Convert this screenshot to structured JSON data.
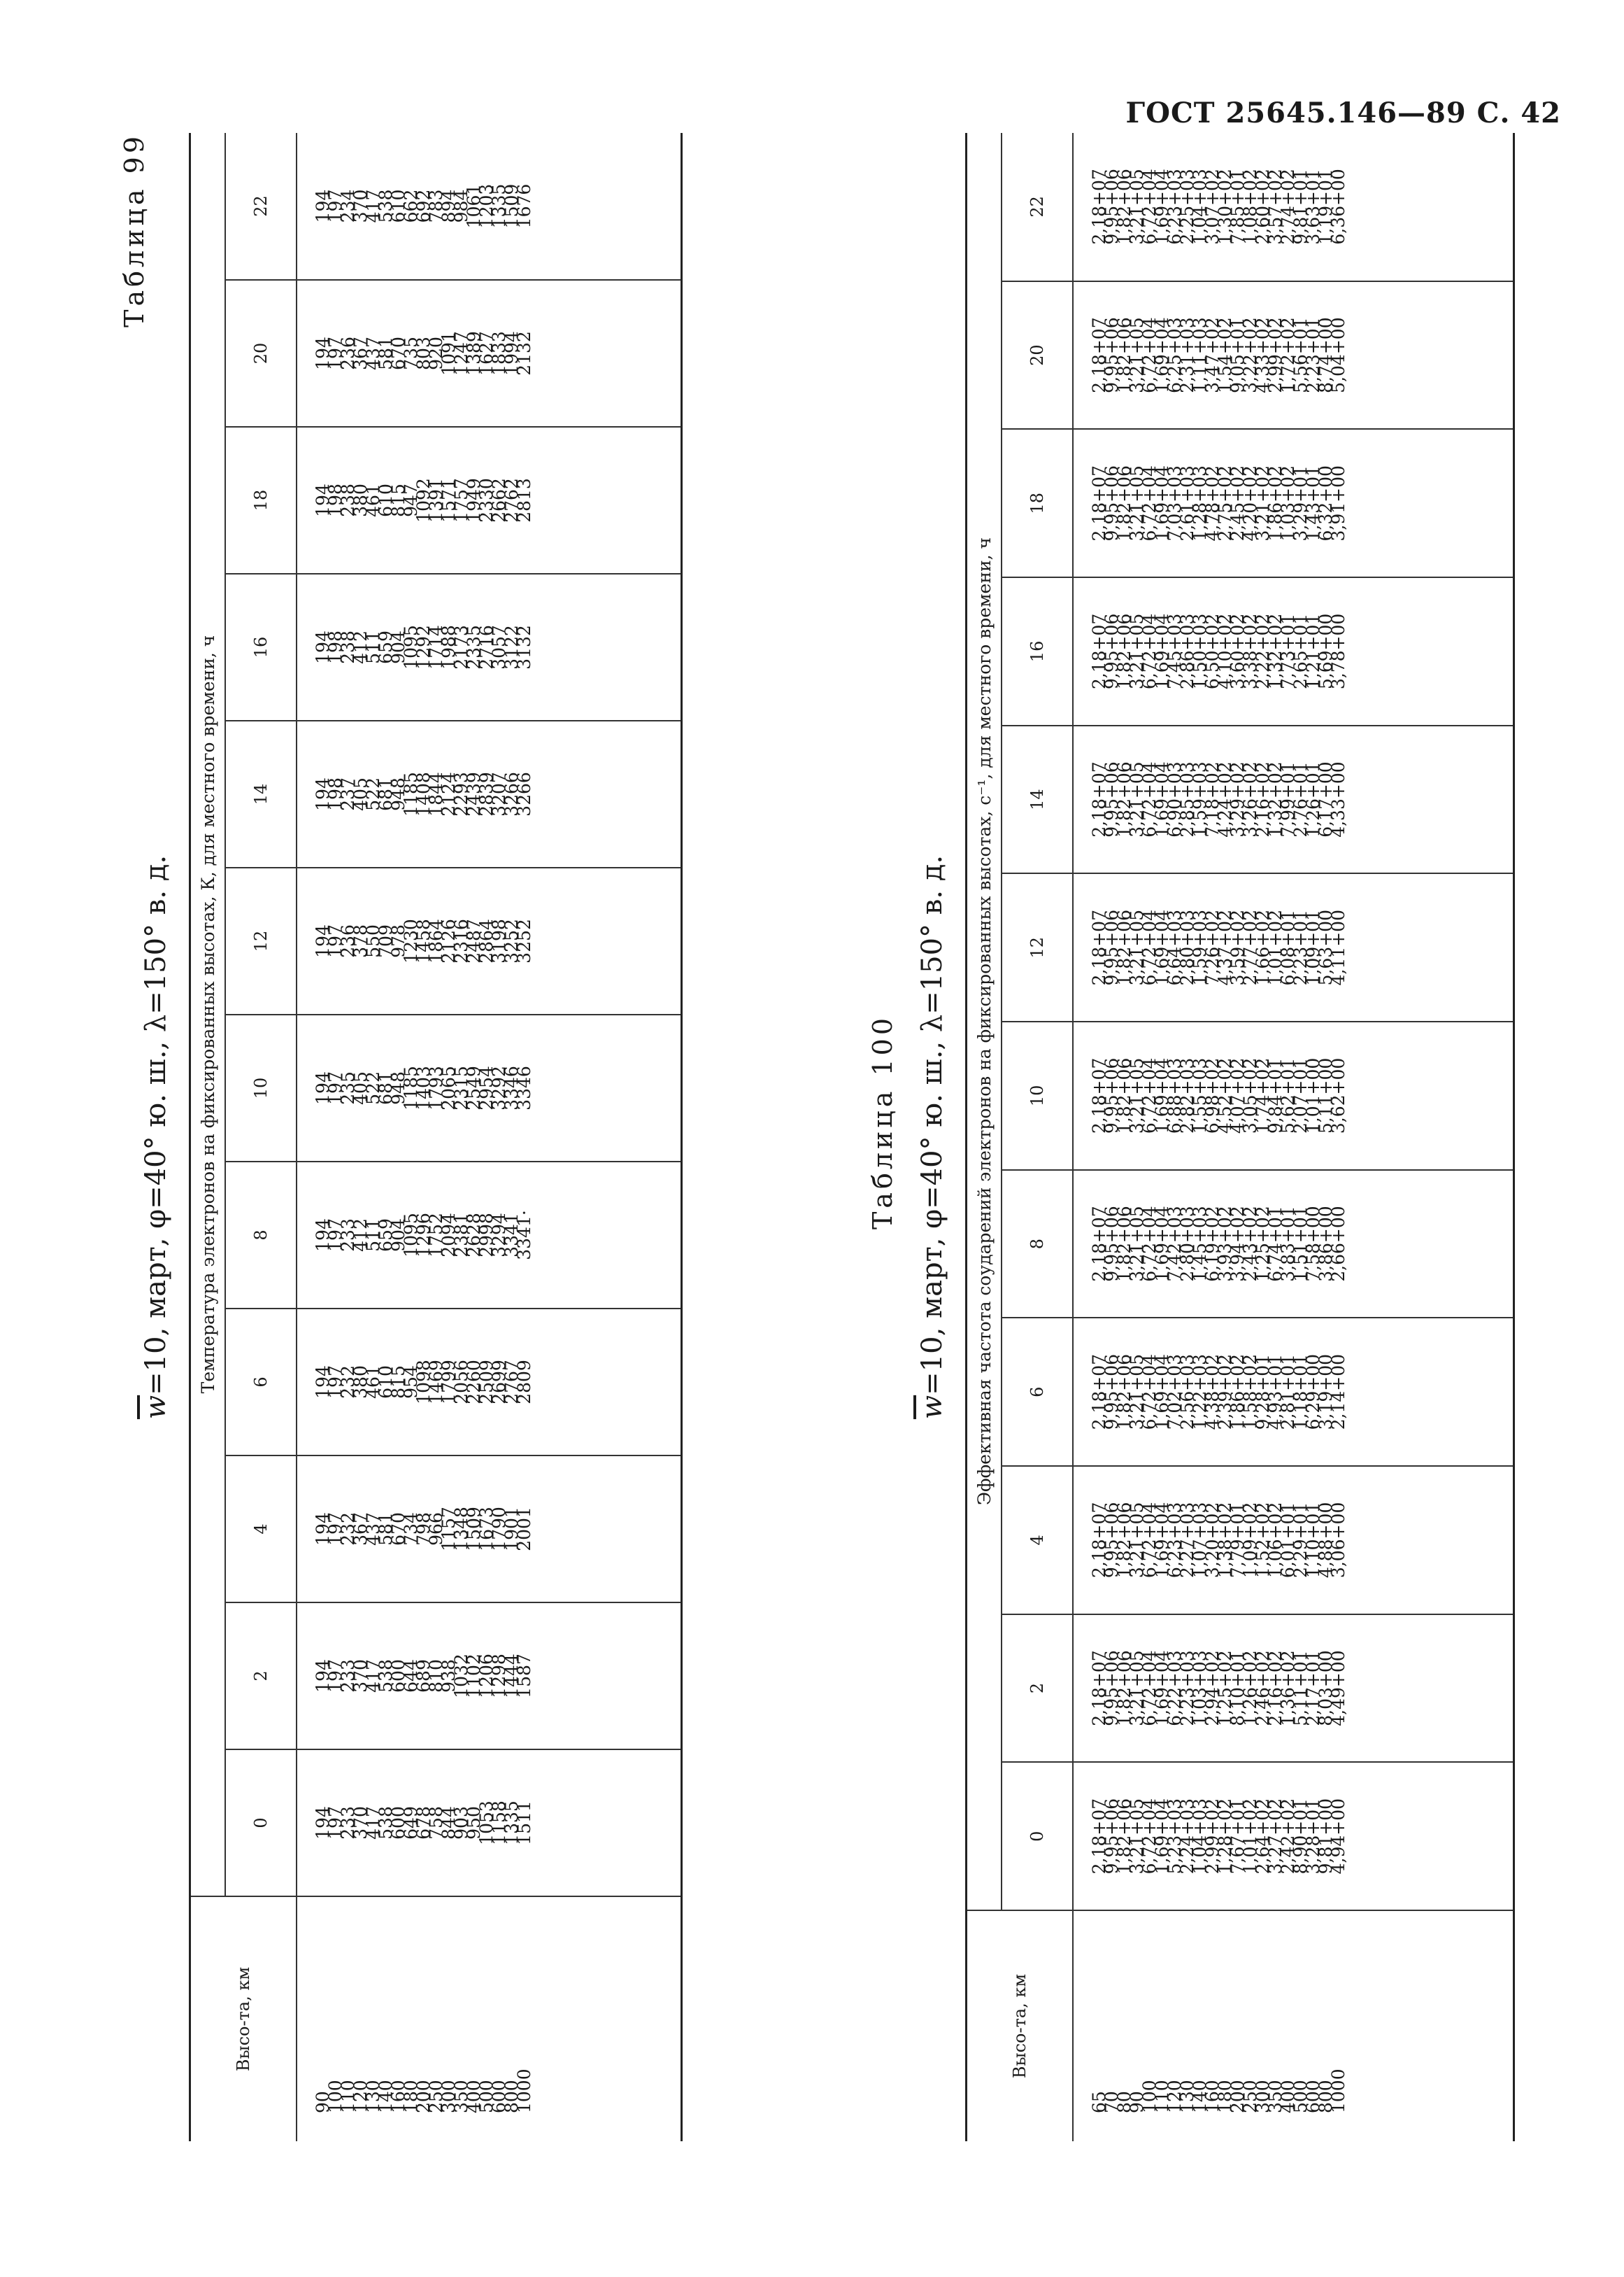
{
  "header": "ГОСТ 25645.146—89 С. 42",
  "tables": [
    {
      "number": "Таблица 99",
      "caption_w": "w",
      "caption_rest": "=10, март, φ=40° ю. ш., λ=150° в. д.",
      "alt_header": "Высо-та, км",
      "span_header": "Температура электронов на фиксированных высотах, К, для местного времени, ч",
      "hours": [
        "0",
        "2",
        "4",
        "6",
        "8",
        "10",
        "12",
        "14",
        "16",
        "18",
        "20",
        "22"
      ],
      "altitudes": [
        "90",
        "100",
        "110",
        "120",
        "130",
        "140",
        "160",
        "180",
        "200",
        "250",
        "300",
        "350",
        "400",
        "500",
        "600",
        "800",
        "1000"
      ],
      "columns": [
        [
          "194",
          "197",
          "233",
          "370",
          "417",
          "538",
          "600",
          "649",
          "678",
          "758",
          "844",
          "903",
          "950",
          "1053",
          "1158",
          "1335",
          "1511"
        ],
        [
          "194",
          "197",
          "233",
          "370",
          "417",
          "538",
          "600",
          "644",
          "689",
          "810",
          "938",
          "1032",
          "1102",
          "1206",
          "1298",
          "1444",
          "1587"
        ],
        [
          "194",
          "197",
          "232",
          "367",
          "437",
          "581",
          "670",
          "734",
          "798",
          "966",
          "1157",
          "1348",
          "1509",
          "1673",
          "1790",
          "1901",
          "2001"
        ],
        [
          "194",
          "197",
          "232",
          "380",
          "461",
          "610",
          "815",
          "954",
          "1098",
          "1469",
          "1799",
          "2056",
          "2260",
          "2509",
          "2699",
          "2767",
          "2809"
        ],
        [
          "194",
          "197",
          "233",
          "412",
          "511",
          "659",
          "904",
          "1095",
          "1296",
          "1752",
          "2094",
          "2381",
          "2628",
          "2998",
          "3294",
          "3341",
          "3341·"
        ],
        [
          "194",
          "197",
          "235",
          "405",
          "522",
          "681",
          "948",
          "1185",
          "1403",
          "1793",
          "2065",
          "2315",
          "2549",
          "2954",
          "3292",
          "3346",
          "3346"
        ],
        [
          "194",
          "197",
          "236",
          "378",
          "550",
          "709",
          "978",
          "1230",
          "1458",
          "1864",
          "2126",
          "2316",
          "2487",
          "2864",
          "3198",
          "3252",
          "3252"
        ],
        [
          "194",
          "198",
          "237",
          "405",
          "522",
          "681",
          "948",
          "1185",
          "1408",
          "1844",
          "2124",
          "2293",
          "2439",
          "2839",
          "3207",
          "3266",
          "3266"
        ],
        [
          "194",
          "198",
          "238",
          "412",
          "511",
          "659",
          "904",
          "1095",
          "1292",
          "1714",
          "1988",
          "2173",
          "2335",
          "2716",
          "3057",
          "3122",
          "3132"
        ],
        [
          "194",
          "198",
          "238",
          "380",
          "461",
          "610",
          "815",
          "947",
          "1092",
          "1391",
          "1571",
          "1757",
          "1949",
          "2330",
          "2662",
          "2762",
          "2813"
        ],
        [
          "194",
          "197",
          "236",
          "367",
          "437",
          "581",
          "670",
          "735",
          "803",
          "920",
          "1091",
          "1247",
          "1389",
          "1627",
          "1833",
          "1994",
          "2132"
        ],
        [
          "194",
          "197",
          "234",
          "370",
          "417",
          "538",
          "610",
          "662",
          "692",
          "783",
          "894",
          "984",
          "1061",
          "1203",
          "1335",
          "1509",
          "1676"
        ]
      ]
    },
    {
      "number": "Таблица 100",
      "caption_w": "w",
      "caption_rest": "=10, март, φ=40° ю. ш., λ=150° в. д.",
      "alt_header": "Высо-та, км",
      "span_header": "Эффективная частота соударений электронов на фиксированных высотах, с⁻¹, для местного времени, ч",
      "hours": [
        "0",
        "2",
        "4",
        "6",
        "8",
        "10",
        "12",
        "14",
        "16",
        "18",
        "20",
        "22"
      ],
      "altitudes": [
        "65",
        "70",
        "80",
        "90",
        "100",
        "110",
        "120",
        "130",
        "140",
        "160",
        "180",
        "200",
        "250",
        "300",
        "350",
        "400",
        "500",
        "600",
        "800",
        "1000"
      ],
      "columns": [
        [
          "2,18+07",
          "9,95+06",
          "1,82+06",
          "3,21+05",
          "6,72+04",
          "1,69+04",
          "5,23+03",
          "2,24+03",
          "1,04+03",
          "2,99+02",
          "1,28+02",
          "7,67+01",
          "1,01+02",
          "2,64+02",
          "3,27+02",
          "2,42+02",
          "8,90+01",
          "3,28+01",
          "9,81+00",
          "4,94+00"
        ],
        [
          "2,18+07",
          "9,95+06",
          "1,82+06",
          "3,21+05",
          "6,72+04",
          "1,69+04",
          "6,22+03",
          "2,23+03",
          "1,03+03",
          "2,94+02",
          "1,25+02",
          "8,10+01",
          "1,26+02",
          "2,46+02",
          "2,16+02",
          "1,36+02",
          "5,11+01",
          "2,17+01",
          "8,03+00",
          "4,49+00"
        ],
        [
          "2,18+07",
          "9,95+06",
          "1,82+06",
          "3,21+05",
          "6,72+04",
          "1,69+04",
          "6,23+03",
          "2,27+03",
          "1,07+03",
          "3,20+02",
          "1,38+02",
          "7,79+01",
          "1,09+02",
          "1,52+02",
          "1,06+02",
          "6,01+01",
          "2,29+01",
          "1,10+01",
          "4,88+00",
          "3,06+00"
        ],
        [
          "2,18+07",
          "9,95+06",
          "1,82+06",
          "3,21+05",
          "6,72+04",
          "1,69+04",
          "7,02+03",
          "2,56+03",
          "1,22+03",
          "4,38+02",
          "2,39+02",
          "1,86+02",
          "1,58+02",
          "9,28+01",
          "4,93+01",
          "2,81+01",
          "1,18+01",
          "6,29+00",
          "3,19+00",
          "2,14+00"
        ],
        [
          "2,18+07",
          "9,95+06",
          "1,82+06",
          "3,21+05",
          "6,72+04",
          "1,69+04",
          "7,42+03",
          "2,80+03",
          "1,45+03",
          "6,19+02",
          "3,93+02",
          "3,94+02",
          "2,43+02",
          "1,25+02",
          "6,74+01",
          "3,83+01",
          "1,51+01",
          "7,58+00",
          "3,86+00",
          "2,66+00"
        ],
        [
          "2,18+07",
          "9,95+06",
          "1,82+06",
          "3,21+05",
          "6,72+04",
          "1,69+04",
          "6,88+03",
          "2,82+03",
          "1,55+03",
          "6,98+02",
          "4,52+02",
          "4,07+02",
          "3,05+02",
          "1,74+02",
          "9,84+01",
          "5,62+01",
          "2,07+01",
          "1,01+00",
          "5,11+00",
          "3,62+00"
        ],
        [
          "2,18+07",
          "9,95+06",
          "1,82+06",
          "3,21+05",
          "6,72+04",
          "1,69+04",
          "6,64+03",
          "2,80+03",
          "1,59+03",
          "7,26+02",
          "4,37+02",
          "3,59+02",
          "2,77+02",
          "1,66+02",
          "1,01+02",
          "6,08+01",
          "2,23+01",
          "1,09+01",
          "5,63+00",
          "4,11+00"
        ],
        [
          "2,18+07",
          "9,95+06",
          "1,82+06",
          "3,21+05",
          "6,72+04",
          "1,69+04",
          "6,90+03",
          "2,85+03",
          "1,59+03",
          "7,18+02",
          "4,24+02",
          "3,29+02",
          "3,26+02",
          "2,16+02",
          "1,32+02",
          "7,99+01",
          "2,76+01",
          "1,26+01",
          "6,17+00",
          "4,33+00"
        ],
        [
          "2,18+07",
          "9,95+06",
          "1,82+06",
          "3,21+05",
          "6,72+04",
          "1,69+04",
          "7,45+03",
          "2,86+03",
          "1,50+03",
          "6,50+02",
          "4,10+02",
          "3,60+02",
          "3,38+02",
          "2,22+02",
          "1,32+02",
          "7,73+01",
          "2,65+01",
          "1,21+01",
          "5,69+00",
          "3,78+00"
        ],
        [
          "2,18+07",
          "9,95+06",
          "1,82+06",
          "3,21+05",
          "6,72+04",
          "1,69+04",
          "7,03+03",
          "2,61+03",
          "1,28+03",
          "4,78+02",
          "2,75+02",
          "2,45+02",
          "4,20+02",
          "3,21+02",
          "1,86+02",
          "1,03+02",
          "3,29+01",
          "1,43+01",
          "6,32+00",
          "3,91+00"
        ],
        [
          "2,18+07",
          "9,95+06",
          "1,82+06",
          "3,21+05",
          "6,72+04",
          "1,69+04",
          "6,25+03",
          "2,31+03",
          "1,11+03",
          "3,47+02",
          "1,54+02",
          "9,05+01",
          "3,22+02",
          "4,33+02",
          "2,99+02",
          "1,72+02",
          "5,56+01",
          "2,23+01",
          "8,74+00",
          "5,04+00"
        ],
        [
          "2,18+07",
          "9,95+06",
          "1,82+06",
          "3,21+05",
          "6,72+04",
          "1,69+04",
          "6,23+03",
          "2,25+03",
          "1,04+03",
          "3,07+02",
          "1,30+02",
          "7,85+01",
          "1,08+02",
          "2,60+02",
          "3,57+02",
          "2,74+02",
          "9,81+01",
          "3,63+01",
          "1,19+01",
          "6,36+00"
        ]
      ]
    }
  ]
}
